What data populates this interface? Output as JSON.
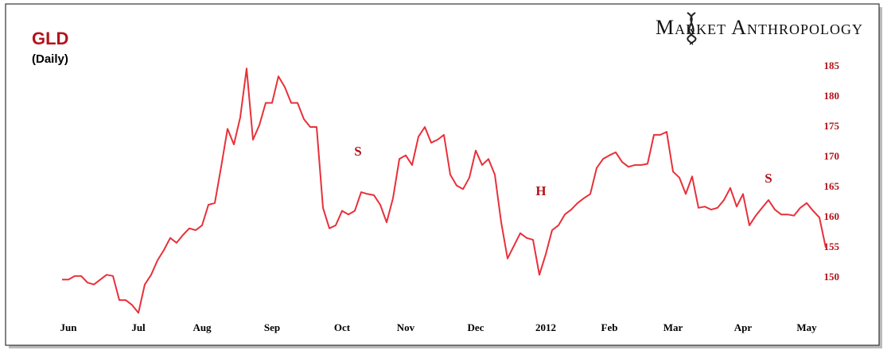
{
  "chart_data": {
    "type": "line",
    "title": "GLD",
    "subtitle": "(Daily)",
    "brand": "Market Anthropology",
    "annotations": [
      "S",
      "H",
      "S"
    ],
    "categories": [
      null,
      "Jun",
      null,
      null,
      null,
      null,
      null,
      null,
      null,
      null,
      null,
      null,
      "Jul",
      null,
      null,
      null,
      null,
      null,
      null,
      null,
      null,
      null,
      "Aug",
      null,
      null,
      null,
      null,
      null,
      null,
      null,
      null,
      null,
      null,
      "Sep",
      null,
      null,
      null,
      null,
      null,
      null,
      null,
      null,
      null,
      null,
      "Oct",
      null,
      null,
      null,
      null,
      null,
      null,
      null,
      null,
      null,
      "Nov",
      null,
      null,
      null,
      null,
      null,
      null,
      null,
      null,
      null,
      null,
      "Dec",
      null,
      null,
      null,
      null,
      null,
      null,
      null,
      null,
      null,
      null,
      "2012",
      null,
      null,
      null,
      null,
      null,
      null,
      null,
      null,
      null,
      "Feb",
      null,
      null,
      null,
      null,
      null,
      null,
      null,
      null,
      null,
      "Mar",
      null,
      null,
      null,
      null,
      null,
      null,
      null,
      null,
      null,
      null,
      "Apr",
      null,
      null,
      null,
      null,
      null,
      null,
      null,
      null,
      null,
      "May",
      null,
      null,
      null
    ],
    "values": [
      149.7,
      149.7,
      150.3,
      150.3,
      149.2,
      148.9,
      149.7,
      150.5,
      150.3,
      146.3,
      146.3,
      145.5,
      144.2,
      148.9,
      150.5,
      152.9,
      154.6,
      156.6,
      155.8,
      157.1,
      158.2,
      157.9,
      158.7,
      162.1,
      162.4,
      168.4,
      174.7,
      172.1,
      176.6,
      184.7,
      172.9,
      175.3,
      179,
      179,
      183.4,
      181.6,
      179,
      179,
      176.3,
      175,
      175,
      161.6,
      158.2,
      158.7,
      161.1,
      160.5,
      161.1,
      164.2,
      163.9,
      163.7,
      162.1,
      159.2,
      163.2,
      169.7,
      170.3,
      168.7,
      173.4,
      175,
      172.4,
      172.9,
      173.7,
      167.1,
      165.3,
      164.7,
      166.6,
      171.1,
      168.7,
      169.7,
      167.1,
      159.2,
      153.2,
      155.3,
      157.4,
      156.6,
      156.3,
      150.5,
      153.9,
      157.9,
      158.7,
      160.5,
      161.3,
      162.4,
      163.2,
      163.9,
      168.2,
      169.7,
      170.3,
      170.8,
      169.2,
      168.4,
      168.7,
      168.7,
      168.9,
      173.7,
      173.7,
      174.2,
      167.6,
      166.6,
      163.9,
      166.8,
      161.6,
      161.8,
      161.3,
      161.6,
      162.9,
      164.9,
      161.8,
      163.9,
      158.7,
      160.3,
      161.6,
      162.9,
      161.3,
      160.5,
      160.5,
      160.3,
      161.6,
      162.4,
      161.1,
      160,
      155
    ],
    "color": "#e8303a",
    "ylim": [
      143,
      188
    ],
    "yticks": [
      150,
      155,
      160,
      165,
      170,
      175,
      180,
      185
    ],
    "grid": false
  }
}
